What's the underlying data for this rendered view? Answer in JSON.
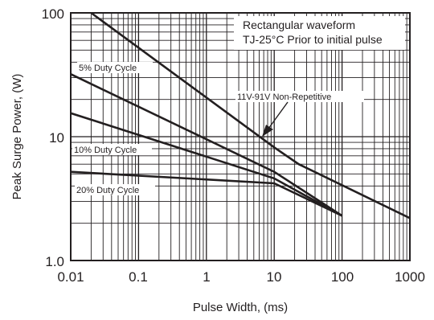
{
  "chart_data": {
    "type": "line",
    "x_scale": "log",
    "y_scale": "log",
    "xlim": [
      0.01,
      1000
    ],
    "ylim": [
      1,
      100
    ],
    "grid": true,
    "xlabel": "Pulse Width, (ms)",
    "ylabel": "Peak Surge Power, (W)",
    "x_ticks": [
      {
        "value": 0.01,
        "label": "0.01"
      },
      {
        "value": 0.1,
        "label": "0.1"
      },
      {
        "value": 1,
        "label": "1"
      },
      {
        "value": 10,
        "label": "10"
      },
      {
        "value": 100,
        "label": "100"
      },
      {
        "value": 1000,
        "label": "1000"
      }
    ],
    "y_ticks": [
      {
        "value": 1,
        "label": "1.0"
      },
      {
        "value": 10,
        "label": "10"
      },
      {
        "value": 100,
        "label": "100"
      }
    ],
    "annotations": [
      {
        "text": "Rectangular waveform"
      },
      {
        "text": "TJ-25°C Prior to initial pulse"
      }
    ],
    "series": [
      {
        "name": "11V-91V Non-Repetitive",
        "x": [
          0.02,
          10,
          23,
          1000
        ],
        "y": [
          100,
          8.2,
          6,
          2.2
        ]
      },
      {
        "name": "5% Duty Cycle",
        "x": [
          0.01,
          10,
          100
        ],
        "y": [
          32,
          5.2,
          2.3
        ]
      },
      {
        "name": "10% Duty Cycle",
        "x": [
          0.01,
          10,
          100
        ],
        "y": [
          15.5,
          4.6,
          2.3
        ]
      },
      {
        "name": "20% Duty Cycle",
        "x": [
          0.01,
          10,
          100
        ],
        "y": [
          5.2,
          4.2,
          2.3
        ]
      }
    ]
  }
}
